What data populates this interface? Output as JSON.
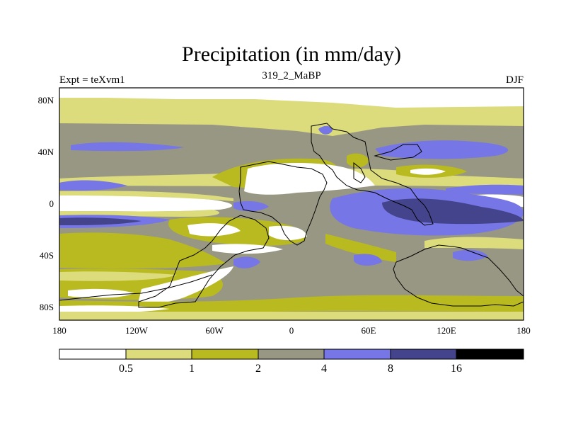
{
  "title": "Precipitation (in mm/day)",
  "left_label": "Expt = teXvm1",
  "center_label": "319_2_MaBP",
  "right_label": "DJF",
  "lat_ticks": [
    {
      "value": 80,
      "label": "80N"
    },
    {
      "value": 40,
      "label": "40N"
    },
    {
      "value": 0,
      "label": "0"
    },
    {
      "value": -40,
      "label": "40S"
    },
    {
      "value": -80,
      "label": "80S"
    }
  ],
  "lon_ticks": [
    {
      "value": -180,
      "label": "180"
    },
    {
      "value": -120,
      "label": "120W"
    },
    {
      "value": -60,
      "label": "60W"
    },
    {
      "value": 0,
      "label": "0"
    },
    {
      "value": 60,
      "label": "60E"
    },
    {
      "value": 120,
      "label": "120E"
    },
    {
      "value": 180,
      "label": "180"
    }
  ],
  "colorbar": {
    "bins": [
      {
        "color": "#ffffff"
      },
      {
        "color": "#dcdc7c"
      },
      {
        "color": "#b9b920"
      },
      {
        "color": "#979783"
      },
      {
        "color": "#7676e6"
      },
      {
        "color": "#44448c"
      },
      {
        "color": "#000000"
      }
    ],
    "labels": [
      "0.5",
      "1",
      "2",
      "4",
      "8",
      "16"
    ]
  },
  "chart_data": {
    "type": "heatmap",
    "title": "Precipitation (in mm/day)",
    "units": "mm/day",
    "season": "DJF",
    "experiment": "teXvm1",
    "period": "319_2_MaBP",
    "xlim": [
      -180,
      180
    ],
    "ylim": [
      -90,
      90
    ],
    "levels": [
      0.5,
      1,
      2,
      4,
      8,
      16
    ]
  }
}
